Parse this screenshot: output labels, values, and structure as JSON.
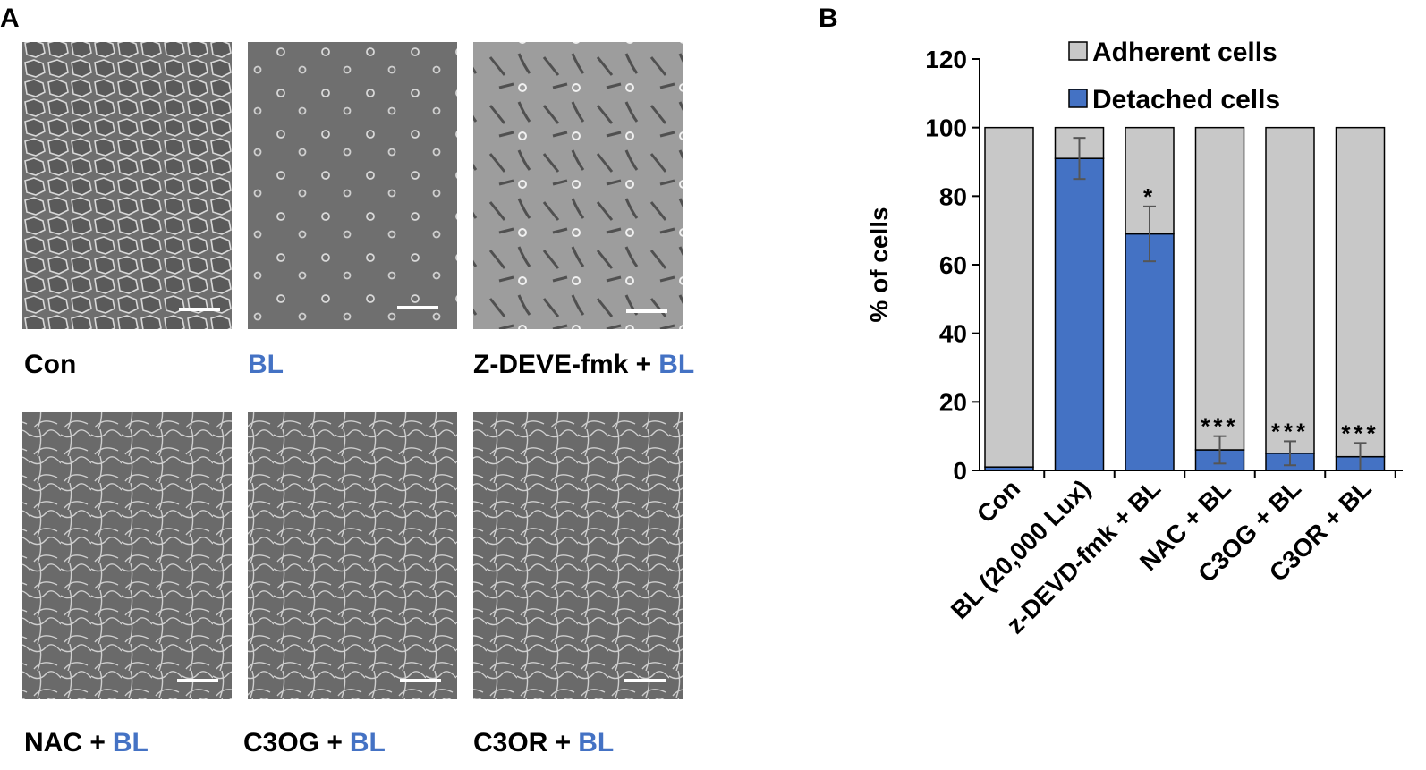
{
  "panel_a": {
    "label": "A",
    "captions": [
      [
        {
          "text": "Con"
        }
      ],
      [
        {
          "text": "BL",
          "color": "#4472c4"
        }
      ],
      [
        {
          "text": "Z-DEVE-fmk +"
        },
        {
          "text": "BL",
          "color": "#4472c4"
        }
      ],
      [
        {
          "text": "NAC +"
        },
        {
          "text": "BL",
          "color": "#4472c4"
        }
      ],
      [
        {
          "text": "C3OG +"
        },
        {
          "text": "BL",
          "color": "#4472c4"
        }
      ],
      [
        {
          "text": "C3OR +"
        },
        {
          "text": "BL",
          "color": "#4472c4"
        }
      ]
    ]
  },
  "chart_data": {
    "type": "stacked-bar",
    "panel_label": "B",
    "ylabel": "% of cells",
    "categories": [
      "Con",
      "BL (20,000 Lux)",
      "z-DEVD-fmk + BL",
      "NAC + BL",
      "C3OG + BL",
      "C3OR + BL"
    ],
    "series": [
      {
        "name": "Detached cells",
        "color": "#4472c4",
        "values": [
          1,
          91,
          69,
          6,
          5,
          4
        ],
        "errors": [
          null,
          6,
          8,
          4,
          3.5,
          4
        ]
      },
      {
        "name": "Adherent cells",
        "color": "#c8c8c8",
        "values": [
          99,
          9,
          31,
          94,
          95,
          96
        ]
      }
    ],
    "annotations": [
      null,
      null,
      "*",
      "***",
      "***",
      "***"
    ],
    "ylim": [
      0,
      120
    ],
    "yticks": [
      0,
      20,
      40,
      60,
      80,
      100,
      120
    ]
  }
}
